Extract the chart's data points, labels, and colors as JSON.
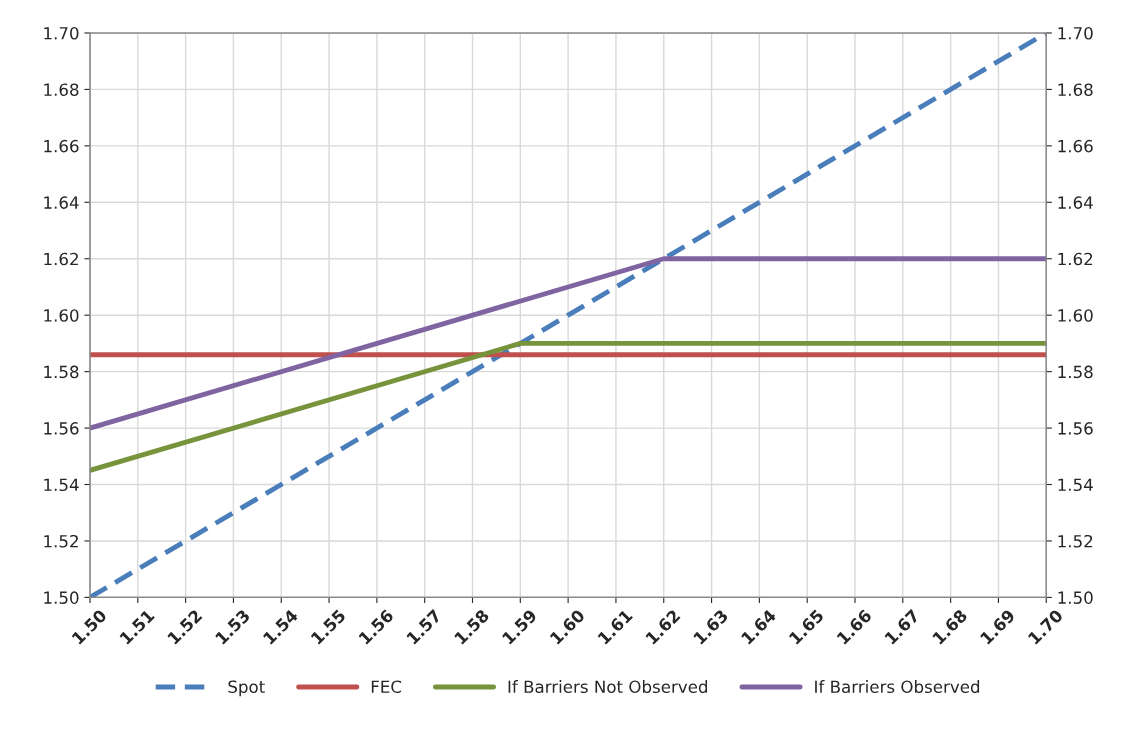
{
  "chart_data": {
    "type": "line",
    "xlim": [
      1.5,
      1.7
    ],
    "xticks": [
      {
        "value": 1.5,
        "label": "1.50"
      },
      1.51,
      1.52,
      1.53,
      1.54,
      1.55,
      1.56,
      1.57,
      1.58,
      1.59,
      {
        "value": 1.6,
        "label": "1.60"
      },
      1.61,
      1.62,
      1.63,
      1.64,
      1.65,
      1.66,
      1.67,
      1.68,
      1.69,
      {
        "value": 1.7,
        "label": "1.70"
      }
    ],
    "ylim": [
      1.5,
      1.7
    ],
    "yticks": [
      {
        "value": 1.5,
        "label": "1.50"
      },
      1.52,
      1.54,
      1.56,
      1.58,
      {
        "value": 1.6,
        "label": "1.60"
      },
      1.62,
      1.64,
      1.66,
      1.68,
      {
        "value": 1.7,
        "label": "1.70"
      }
    ],
    "y2lim": [
      1.5,
      1.7
    ],
    "y2ticks": [
      {
        "value": 1.5,
        "label": "1.50"
      },
      1.52,
      1.54,
      1.56,
      1.58,
      {
        "value": 1.6,
        "label": "1.60"
      },
      1.62,
      1.64,
      1.66,
      1.68,
      {
        "value": 1.7,
        "label": "1.70"
      }
    ],
    "grid": true,
    "legend": "bottom",
    "series": [
      {
        "name": "Spot",
        "color": "#4a7ebb",
        "line_style": "dashed",
        "x": [
          1.5,
          1.7
        ],
        "values": [
          1.5,
          1.7
        ]
      },
      {
        "name": "FEC",
        "color": "#c0504d",
        "line_style": "solid",
        "x": [
          1.5,
          1.7
        ],
        "values": [
          1.586,
          1.586
        ]
      },
      {
        "name": "If Barriers Not Observed",
        "color": "#77933c",
        "line_style": "solid",
        "x": [
          1.5,
          1.59,
          1.7
        ],
        "values": [
          1.545,
          1.59,
          1.59
        ]
      },
      {
        "name": "If Barriers Observed",
        "color": "#8064a2",
        "line_style": "solid",
        "x": [
          1.5,
          1.62,
          1.7
        ],
        "values": [
          1.56,
          1.62,
          1.62
        ]
      }
    ]
  }
}
